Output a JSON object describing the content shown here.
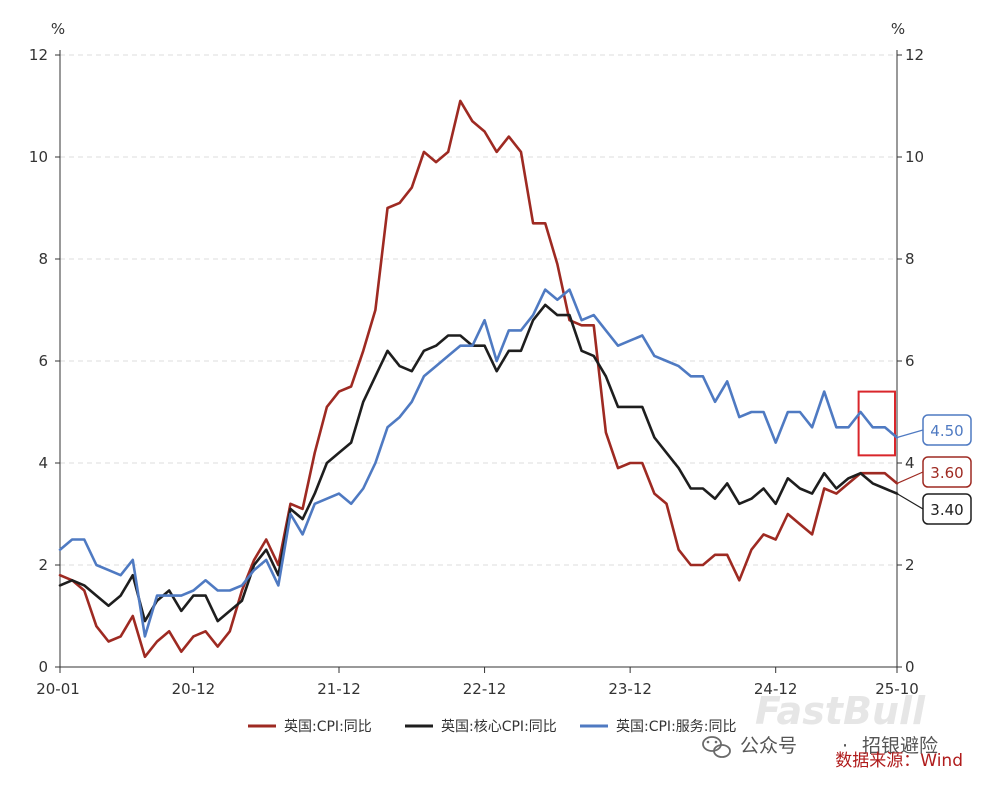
{
  "chart_data": {
    "type": "line",
    "title": "",
    "y_unit_left": "%",
    "y_unit_right": "%",
    "ylim": [
      0,
      12
    ],
    "y_ticks": [
      0,
      2,
      4,
      6,
      8,
      10,
      12
    ],
    "x_ticks": [
      "20-01",
      "20-12",
      "21-12",
      "22-12",
      "23-12",
      "24-12",
      "25-10"
    ],
    "x_tick_index": [
      0,
      11,
      23,
      35,
      47,
      59,
      69
    ],
    "grid": "horizontal-dashed",
    "legend_position": "bottom-center",
    "series": [
      {
        "name": "英国:CPI:同比",
        "color": "#9e2a22",
        "end_label": "3.60",
        "values": [
          1.8,
          1.7,
          1.5,
          0.8,
          0.5,
          0.6,
          1.0,
          0.2,
          0.5,
          0.7,
          0.3,
          0.6,
          0.7,
          0.4,
          0.7,
          1.5,
          2.1,
          2.5,
          2.0,
          3.2,
          3.1,
          4.2,
          5.1,
          5.4,
          5.5,
          6.2,
          7.0,
          9.0,
          9.1,
          9.4,
          10.1,
          9.9,
          10.1,
          11.1,
          10.7,
          10.5,
          10.1,
          10.4,
          10.1,
          8.7,
          8.7,
          7.9,
          6.8,
          6.7,
          6.7,
          4.6,
          3.9,
          4.0,
          4.0,
          3.4,
          3.2,
          2.3,
          2.0,
          2.0,
          2.2,
          2.2,
          1.7,
          2.3,
          2.6,
          2.5,
          3.0,
          2.8,
          2.6,
          3.5,
          3.4,
          3.6,
          3.8,
          3.8,
          3.8,
          3.6
        ]
      },
      {
        "name": "英国:核心CPI:同比",
        "color": "#1e1e1e",
        "end_label": "3.40",
        "values": [
          1.6,
          1.7,
          1.6,
          1.4,
          1.2,
          1.4,
          1.8,
          0.9,
          1.3,
          1.5,
          1.1,
          1.4,
          1.4,
          0.9,
          1.1,
          1.3,
          2.0,
          2.3,
          1.8,
          3.1,
          2.9,
          3.4,
          4.0,
          4.2,
          4.4,
          5.2,
          5.7,
          6.2,
          5.9,
          5.8,
          6.2,
          6.3,
          6.5,
          6.5,
          6.3,
          6.3,
          5.8,
          6.2,
          6.2,
          6.8,
          7.1,
          6.9,
          6.9,
          6.2,
          6.1,
          5.7,
          5.1,
          5.1,
          5.1,
          4.5,
          4.2,
          3.9,
          3.5,
          3.5,
          3.3,
          3.6,
          3.2,
          3.3,
          3.5,
          3.2,
          3.7,
          3.5,
          3.4,
          3.8,
          3.5,
          3.7,
          3.8,
          3.6,
          3.5,
          3.4
        ]
      },
      {
        "name": "英国:CPI:服务:同比",
        "color": "#4f7ac2",
        "end_label": "4.50",
        "values": [
          2.3,
          2.5,
          2.5,
          2.0,
          1.9,
          1.8,
          2.1,
          0.6,
          1.4,
          1.4,
          1.4,
          1.5,
          1.7,
          1.5,
          1.5,
          1.6,
          1.9,
          2.1,
          1.6,
          3.0,
          2.6,
          3.2,
          3.3,
          3.4,
          3.2,
          3.5,
          4.0,
          4.7,
          4.9,
          5.2,
          5.7,
          5.9,
          6.1,
          6.3,
          6.3,
          6.8,
          6.0,
          6.6,
          6.6,
          6.9,
          7.4,
          7.2,
          7.4,
          6.8,
          6.9,
          6.6,
          6.3,
          6.4,
          6.5,
          6.1,
          6.0,
          5.9,
          5.7,
          5.7,
          5.2,
          5.6,
          4.9,
          5.0,
          5.0,
          4.4,
          5.0,
          5.0,
          4.7,
          5.4,
          4.7,
          4.7,
          5.0,
          4.7,
          4.7,
          4.5
        ]
      }
    ],
    "highlight_box": {
      "from_index": 66,
      "to_index": 69,
      "y_from": 4.15,
      "y_to": 5.4
    }
  },
  "source_note": "数据来源：Wind",
  "watermark": {
    "brand": "FastBull",
    "wechat_label": "公众号",
    "separator": "·",
    "account": "招银避险"
  }
}
